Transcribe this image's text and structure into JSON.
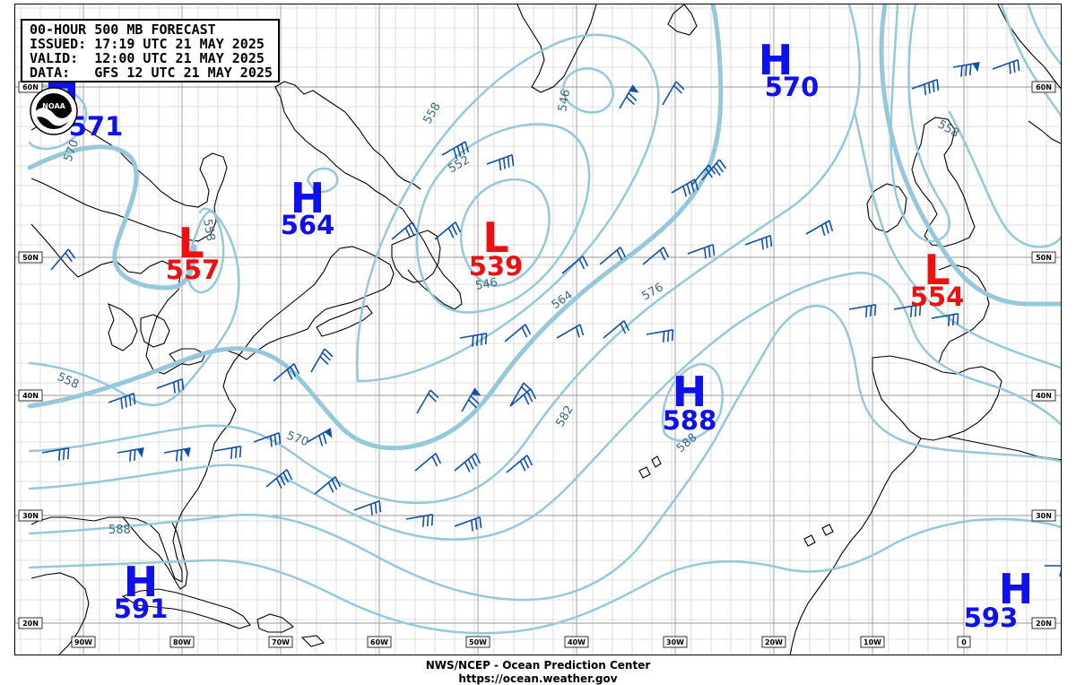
{
  "header": {
    "line1": "00-HOUR 500 MB FORECAST",
    "line2": "ISSUED: 17:19 UTC 21 MAY 2025",
    "line3": "VALID:  12:00 UTC 21 MAY 2025",
    "line4": "DATA:   GFS 12 UTC 21 MAY 2025"
  },
  "logo_text": "NOAA",
  "footer": {
    "line1": "NWS/NCEP - Ocean Prediction Center",
    "line2": "https://ocean.weather.gov"
  },
  "latitude_labels": [
    "60N",
    "50N",
    "40N",
    "30N",
    "20N"
  ],
  "longitude_labels": [
    "90W",
    "80W",
    "70W",
    "60W",
    "50W",
    "40W",
    "30W",
    "20W",
    "10W",
    "0"
  ],
  "pressure_systems": [
    {
      "type": "H",
      "value": "570"
    },
    {
      "type": "H",
      "value": "564"
    },
    {
      "type": "L",
      "value": "557"
    },
    {
      "type": "L",
      "value": "539"
    },
    {
      "type": "L",
      "value": "554"
    },
    {
      "type": "H",
      "value": "588"
    },
    {
      "type": "H",
      "value": "591"
    },
    {
      "type": "H",
      "value": "593"
    },
    {
      "type": "H",
      "value": "571"
    }
  ],
  "contour_labels": [
    "558",
    "552",
    "546",
    "558",
    "564",
    "576",
    "582",
    "588",
    "570",
    "588",
    "558",
    "570",
    "558",
    "546"
  ],
  "colors": {
    "contour": "#96c8dc",
    "contour_label": "#3a6a7a",
    "high": "#1010ee",
    "low": "#ee1010",
    "wind_barb": "#1050a8",
    "grid": "#b4b4b4",
    "coast": "#000000"
  }
}
